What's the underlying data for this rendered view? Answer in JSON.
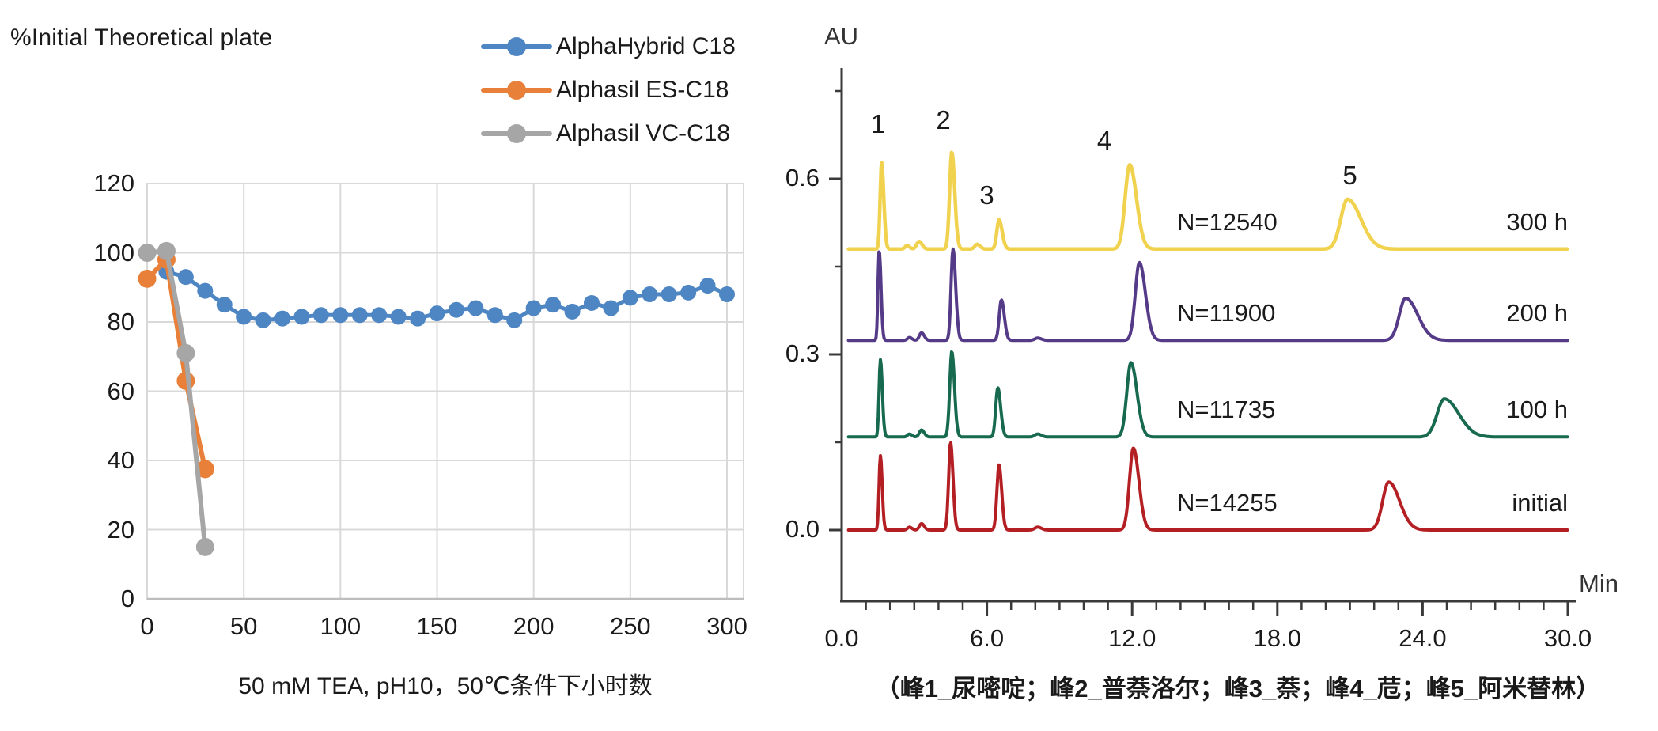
{
  "page": {
    "background": "#ffffff"
  },
  "chart_data": [
    {
      "type": "line",
      "title": "%Initial Theoretical plate",
      "xlabel": "50 mM TEA, pH10，50℃条件下小时数",
      "ylabel": "",
      "xlim": [
        0,
        300
      ],
      "ylim": [
        0,
        120
      ],
      "x_ticks": [
        0,
        50,
        100,
        150,
        200,
        250,
        300
      ],
      "y_ticks": [
        0,
        20,
        40,
        60,
        80,
        100,
        120
      ],
      "grid": true,
      "grid_color": "#d9d9d9",
      "legend_position": "top-right",
      "series": [
        {
          "name": "AlphaHybrid C18",
          "color": "#4e86c4",
          "x": [
            10,
            20,
            30,
            40,
            50,
            60,
            70,
            80,
            90,
            100,
            110,
            120,
            130,
            140,
            150,
            160,
            170,
            180,
            190,
            200,
            210,
            220,
            230,
            240,
            250,
            260,
            270,
            280,
            290,
            300
          ],
          "y": [
            94.5,
            93,
            89,
            85,
            81.5,
            80.5,
            81,
            81.5,
            82,
            82,
            82,
            82,
            81.5,
            81,
            82.5,
            83.5,
            84,
            82,
            80.5,
            84,
            85,
            83,
            85.5,
            84,
            87,
            88,
            88,
            88.5,
            90.5,
            88
          ]
        },
        {
          "name": "Alphasil ES-C18",
          "color": "#e8803a",
          "x": [
            0,
            10,
            20,
            30
          ],
          "y": [
            92.5,
            98,
            63,
            37.5
          ]
        },
        {
          "name": "Alphasil VC-C18",
          "color": "#a6a6a6",
          "x": [
            0,
            10,
            20,
            30
          ],
          "y": [
            100,
            100.5,
            71,
            15
          ]
        }
      ]
    },
    {
      "type": "line",
      "subtype": "chromatogram",
      "ylabel": "AU",
      "xlabel": "Min",
      "xlim": [
        0.0,
        30.0
      ],
      "x_major_tick_labels": [
        "0.0",
        "6.0",
        "12.0",
        "18.0",
        "24.0",
        "30.0"
      ],
      "x_minor_tick_step_min": 1.0,
      "y_axis_ticks_au": [
        0.0,
        0.15,
        0.3,
        0.45,
        0.6,
        0.75
      ],
      "y_tick_labels": [
        {
          "label": "0.0",
          "au": 0.0
        },
        {
          "label": "0.3",
          "au": 0.3
        },
        {
          "label": "0.6",
          "au": 0.6
        }
      ],
      "peak_labels": [
        "1",
        "2",
        "3",
        "4",
        "5"
      ],
      "caption": "（峰1_尿嘧啶；峰2_普萘洛尔；峰3_萘；峰4_苊；峰5_阿米替林）",
      "traces": [
        {
          "name": "300 h",
          "plates_label": "N=12540",
          "color": "#f1d24f",
          "baseline_au": 0.48,
          "peaks": [
            {
              "t_min": 1.65,
              "height_au": 0.148,
              "sigma_left": 0.06,
              "sigma_right": 0.09
            },
            {
              "t_min": 2.7,
              "height_au": 0.006,
              "sigma_left": 0.08,
              "sigma_right": 0.1
            },
            {
              "t_min": 3.2,
              "height_au": 0.013,
              "sigma_left": 0.1,
              "sigma_right": 0.12
            },
            {
              "t_min": 4.55,
              "height_au": 0.166,
              "sigma_left": 0.09,
              "sigma_right": 0.12
            },
            {
              "t_min": 5.6,
              "height_au": 0.008,
              "sigma_left": 0.1,
              "sigma_right": 0.12
            },
            {
              "t_min": 6.5,
              "height_au": 0.05,
              "sigma_left": 0.09,
              "sigma_right": 0.13
            },
            {
              "t_min": 11.9,
              "height_au": 0.144,
              "sigma_left": 0.19,
              "sigma_right": 0.28
            },
            {
              "t_min": 20.9,
              "height_au": 0.085,
              "sigma_left": 0.28,
              "sigma_right": 0.55
            }
          ]
        },
        {
          "name": "200 h",
          "plates_label": "N=11900",
          "color": "#543a87",
          "baseline_au": 0.324,
          "peaks": [
            {
              "t_min": 1.55,
              "height_au": 0.154,
              "sigma_left": 0.05,
              "sigma_right": 0.075
            },
            {
              "t_min": 2.8,
              "height_au": 0.005,
              "sigma_left": 0.08,
              "sigma_right": 0.1
            },
            {
              "t_min": 3.3,
              "height_au": 0.013,
              "sigma_left": 0.09,
              "sigma_right": 0.11
            },
            {
              "t_min": 4.6,
              "height_au": 0.156,
              "sigma_left": 0.08,
              "sigma_right": 0.11
            },
            {
              "t_min": 6.6,
              "height_au": 0.069,
              "sigma_left": 0.09,
              "sigma_right": 0.12
            },
            {
              "t_min": 8.1,
              "height_au": 0.004,
              "sigma_left": 0.12,
              "sigma_right": 0.15
            },
            {
              "t_min": 12.3,
              "height_au": 0.133,
              "sigma_left": 0.17,
              "sigma_right": 0.25
            },
            {
              "t_min": 23.3,
              "height_au": 0.072,
              "sigma_left": 0.26,
              "sigma_right": 0.5
            }
          ]
        },
        {
          "name": "100 h",
          "plates_label": "N=11735",
          "color": "#17694f",
          "baseline_au": 0.159,
          "peaks": [
            {
              "t_min": 1.6,
              "height_au": 0.132,
              "sigma_left": 0.055,
              "sigma_right": 0.08
            },
            {
              "t_min": 2.8,
              "height_au": 0.005,
              "sigma_left": 0.08,
              "sigma_right": 0.1
            },
            {
              "t_min": 3.3,
              "height_au": 0.012,
              "sigma_left": 0.09,
              "sigma_right": 0.11
            },
            {
              "t_min": 4.55,
              "height_au": 0.146,
              "sigma_left": 0.085,
              "sigma_right": 0.11
            },
            {
              "t_min": 6.45,
              "height_au": 0.084,
              "sigma_left": 0.085,
              "sigma_right": 0.12
            },
            {
              "t_min": 8.1,
              "height_au": 0.005,
              "sigma_left": 0.12,
              "sigma_right": 0.15
            },
            {
              "t_min": 11.95,
              "height_au": 0.127,
              "sigma_left": 0.17,
              "sigma_right": 0.25
            },
            {
              "t_min": 24.9,
              "height_au": 0.065,
              "sigma_left": 0.3,
              "sigma_right": 0.6
            }
          ]
        },
        {
          "name": "initial",
          "plates_label": "N=14255",
          "color": "#b41f24",
          "baseline_au": 0.0,
          "peaks": [
            {
              "t_min": 1.6,
              "height_au": 0.127,
              "sigma_left": 0.055,
              "sigma_right": 0.075
            },
            {
              "t_min": 2.8,
              "height_au": 0.005,
              "sigma_left": 0.08,
              "sigma_right": 0.1
            },
            {
              "t_min": 3.3,
              "height_au": 0.011,
              "sigma_left": 0.09,
              "sigma_right": 0.11
            },
            {
              "t_min": 4.5,
              "height_au": 0.15,
              "sigma_left": 0.08,
              "sigma_right": 0.1
            },
            {
              "t_min": 6.5,
              "height_au": 0.112,
              "sigma_left": 0.085,
              "sigma_right": 0.11
            },
            {
              "t_min": 8.1,
              "height_au": 0.005,
              "sigma_left": 0.12,
              "sigma_right": 0.15
            },
            {
              "t_min": 12.05,
              "height_au": 0.14,
              "sigma_left": 0.16,
              "sigma_right": 0.23
            },
            {
              "t_min": 22.6,
              "height_au": 0.082,
              "sigma_left": 0.25,
              "sigma_right": 0.45
            }
          ]
        }
      ]
    }
  ]
}
